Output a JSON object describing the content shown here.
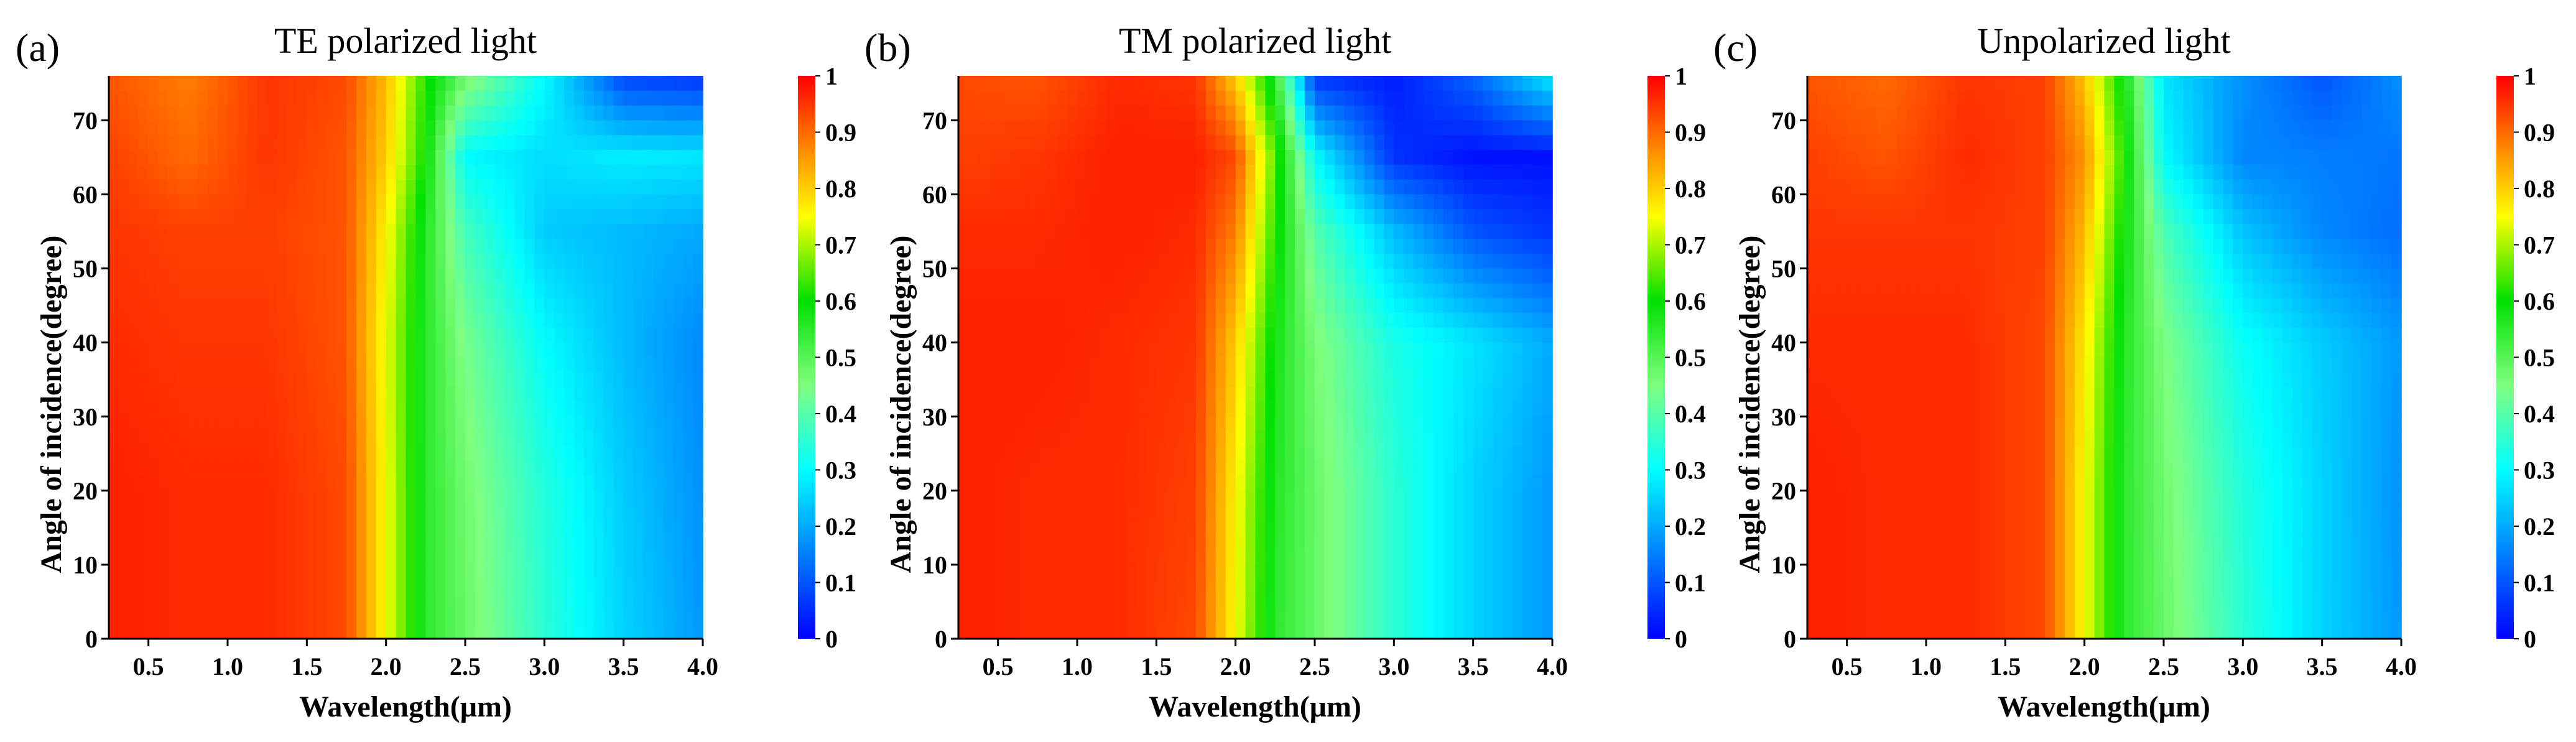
{
  "figure": {
    "panels": [
      {
        "label": "(a)",
        "title": "TE polarized light"
      },
      {
        "label": "(b)",
        "title": "TM polarized light"
      },
      {
        "label": "(c)",
        "title": "Unpolarized light"
      }
    ]
  },
  "colors": {
    "colormap": [
      "#0000ff",
      "#007fff",
      "#00ffff",
      "#7fff7f",
      "#00e000",
      "#ffff00",
      "#ff7f00",
      "#ff0000"
    ],
    "background": "#ffffff",
    "axis": "#000000"
  },
  "chart_data": [
    {
      "type": "heatmap",
      "panel": "(a)",
      "title": "TE polarized light",
      "xlabel": "Wavelength(μm)",
      "ylabel": "Angle of incidence(degree)",
      "xlim": [
        0.25,
        4.0
      ],
      "ylim": [
        0,
        76
      ],
      "xticks": [
        "0.5",
        "1.0",
        "1.5",
        "2.0",
        "2.5",
        "3.0",
        "3.5",
        "4.0"
      ],
      "xtick_values": [
        0.5,
        1.0,
        1.5,
        2.0,
        2.5,
        3.0,
        3.5,
        4.0
      ],
      "yticks": [
        "0",
        "10",
        "20",
        "30",
        "40",
        "50",
        "60",
        "70"
      ],
      "ytick_values": [
        0,
        10,
        20,
        30,
        40,
        50,
        60,
        70
      ],
      "zlim": [
        0,
        1
      ],
      "colorbar_ticks": [
        "0",
        "0.1",
        "0.2",
        "0.3",
        "0.4",
        "0.5",
        "0.6",
        "0.7",
        "0.8",
        "0.9",
        "1"
      ],
      "colorbar_values": [
        0,
        0.1,
        0.2,
        0.3,
        0.4,
        0.5,
        0.6,
        0.7,
        0.8,
        0.9,
        1
      ],
      "x": [
        0.25,
        0.75,
        1.25,
        1.75,
        2.0,
        2.25,
        2.5,
        3.0,
        3.5,
        4.0
      ],
      "y": [
        0,
        20,
        40,
        55,
        65,
        76
      ],
      "z": [
        [
          0.97,
          0.96,
          0.96,
          0.93,
          0.75,
          0.55,
          0.48,
          0.35,
          0.25,
          0.18
        ],
        [
          0.97,
          0.96,
          0.96,
          0.93,
          0.75,
          0.55,
          0.47,
          0.34,
          0.24,
          0.17
        ],
        [
          0.96,
          0.95,
          0.95,
          0.92,
          0.74,
          0.55,
          0.44,
          0.3,
          0.22,
          0.16
        ],
        [
          0.95,
          0.94,
          0.94,
          0.92,
          0.76,
          0.56,
          0.38,
          0.24,
          0.22,
          0.2
        ],
        [
          0.94,
          0.9,
          0.95,
          0.92,
          0.8,
          0.6,
          0.3,
          0.26,
          0.28,
          0.27
        ],
        [
          0.92,
          0.88,
          0.95,
          0.93,
          0.82,
          0.62,
          0.48,
          0.3,
          0.08,
          0.06
        ]
      ]
    },
    {
      "type": "heatmap",
      "panel": "(b)",
      "title": "TM polarized light",
      "xlabel": "Wavelength(μm)",
      "ylabel": "Angle of incidence(degree)",
      "xlim": [
        0.25,
        4.0
      ],
      "ylim": [
        0,
        76
      ],
      "xticks": [
        "0.5",
        "1.0",
        "1.5",
        "2.0",
        "2.5",
        "3.0",
        "3.5",
        "4.0"
      ],
      "xtick_values": [
        0.5,
        1.0,
        1.5,
        2.0,
        2.5,
        3.0,
        3.5,
        4.0
      ],
      "yticks": [
        "0",
        "10",
        "20",
        "30",
        "40",
        "50",
        "60",
        "70"
      ],
      "ytick_values": [
        0,
        10,
        20,
        30,
        40,
        50,
        60,
        70
      ],
      "zlim": [
        0,
        1
      ],
      "colorbar_ticks": [
        "0",
        "0.1",
        "0.2",
        "0.3",
        "0.4",
        "0.5",
        "0.6",
        "0.7",
        "0.8",
        "0.9",
        "1"
      ],
      "colorbar_values": [
        0,
        0.1,
        0.2,
        0.3,
        0.4,
        0.5,
        0.6,
        0.7,
        0.8,
        0.9,
        1
      ],
      "x": [
        0.25,
        0.75,
        1.25,
        1.75,
        2.0,
        2.25,
        2.5,
        3.0,
        3.5,
        4.0
      ],
      "y": [
        0,
        20,
        40,
        55,
        65,
        76
      ],
      "z": [
        [
          0.97,
          0.96,
          0.96,
          0.93,
          0.75,
          0.55,
          0.48,
          0.35,
          0.25,
          0.18
        ],
        [
          0.97,
          0.96,
          0.96,
          0.94,
          0.76,
          0.56,
          0.48,
          0.35,
          0.25,
          0.18
        ],
        [
          0.97,
          0.97,
          0.96,
          0.95,
          0.8,
          0.58,
          0.46,
          0.33,
          0.27,
          0.2
        ],
        [
          0.96,
          0.96,
          0.97,
          0.96,
          0.88,
          0.62,
          0.4,
          0.22,
          0.1,
          0.06
        ],
        [
          0.94,
          0.95,
          0.97,
          0.97,
          0.93,
          0.65,
          0.3,
          0.06,
          0.02,
          0.02
        ],
        [
          0.93,
          0.92,
          0.96,
          0.95,
          0.8,
          0.55,
          0.06,
          0.03,
          0.12,
          0.28
        ]
      ]
    },
    {
      "type": "heatmap",
      "panel": "(c)",
      "title": "Unpolarized light",
      "xlabel": "Wavelength(μm)",
      "ylabel": "Angle of incidence(degree)",
      "xlim": [
        0.25,
        4.0
      ],
      "ylim": [
        0,
        76
      ],
      "xticks": [
        "0.5",
        "1.0",
        "1.5",
        "2.0",
        "2.5",
        "3.0",
        "3.5",
        "4.0"
      ],
      "xtick_values": [
        0.5,
        1.0,
        1.5,
        2.0,
        2.5,
        3.0,
        3.5,
        4.0
      ],
      "yticks": [
        "0",
        "10",
        "20",
        "30",
        "40",
        "50",
        "60",
        "70"
      ],
      "ytick_values": [
        0,
        10,
        20,
        30,
        40,
        50,
        60,
        70
      ],
      "zlim": [
        0,
        1
      ],
      "colorbar_ticks": [
        "0",
        "0.1",
        "0.2",
        "0.3",
        "0.4",
        "0.5",
        "0.6",
        "0.7",
        "0.8",
        "0.9",
        "1"
      ],
      "colorbar_values": [
        0,
        0.1,
        0.2,
        0.3,
        0.4,
        0.5,
        0.6,
        0.7,
        0.8,
        0.9,
        1
      ],
      "x": [
        0.25,
        0.75,
        1.25,
        1.75,
        2.0,
        2.25,
        2.5,
        3.0,
        3.5,
        4.0
      ],
      "y": [
        0,
        20,
        40,
        55,
        65,
        76
      ],
      "z": [
        [
          0.97,
          0.96,
          0.96,
          0.93,
          0.75,
          0.55,
          0.48,
          0.35,
          0.25,
          0.18
        ],
        [
          0.97,
          0.96,
          0.96,
          0.93,
          0.75,
          0.55,
          0.47,
          0.34,
          0.25,
          0.17
        ],
        [
          0.96,
          0.96,
          0.96,
          0.93,
          0.77,
          0.56,
          0.45,
          0.31,
          0.24,
          0.18
        ],
        [
          0.95,
          0.95,
          0.95,
          0.94,
          0.82,
          0.59,
          0.39,
          0.23,
          0.16,
          0.13
        ],
        [
          0.94,
          0.92,
          0.96,
          0.94,
          0.86,
          0.62,
          0.3,
          0.16,
          0.15,
          0.14
        ],
        [
          0.92,
          0.9,
          0.95,
          0.94,
          0.81,
          0.58,
          0.27,
          0.17,
          0.1,
          0.17
        ]
      ]
    }
  ]
}
